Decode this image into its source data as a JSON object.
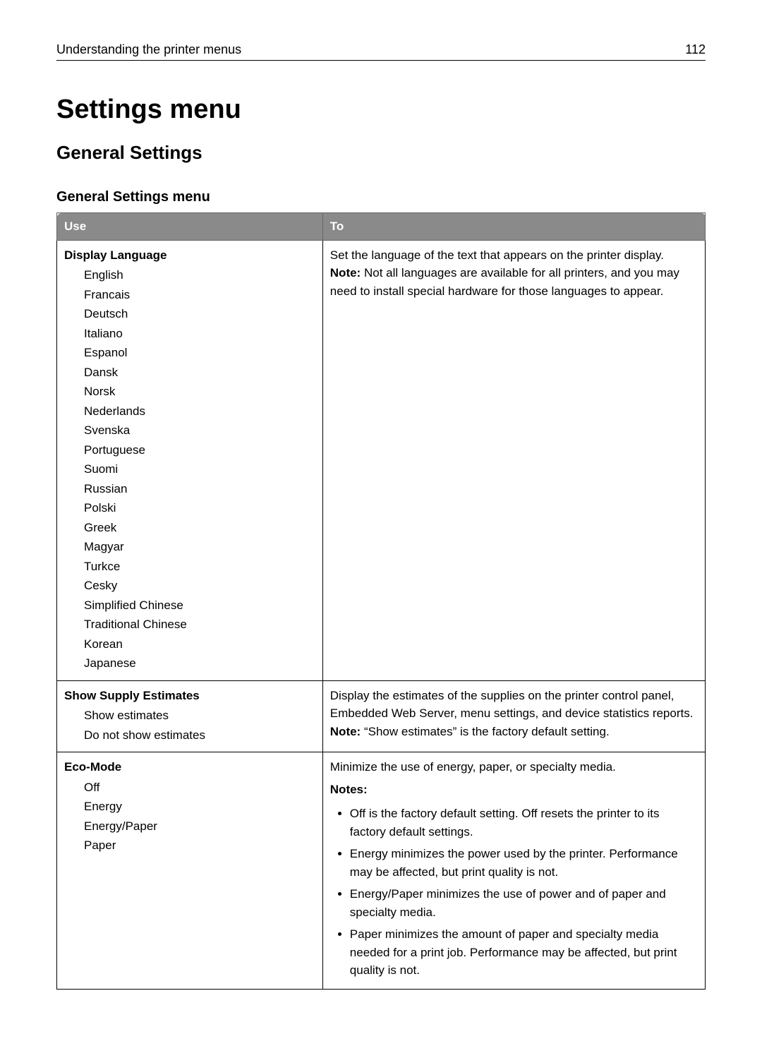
{
  "header": {
    "section": "Understanding the printer menus",
    "page_number": "112"
  },
  "h1": "Settings menu",
  "h2": "General Settings",
  "h3": "General Settings menu",
  "table": {
    "head_use": "Use",
    "head_to": "To",
    "rows": [
      {
        "use_label": "Display Language",
        "options": [
          "English",
          "Francais",
          "Deutsch",
          "Italiano",
          "Espanol",
          "Dansk",
          "Norsk",
          "Nederlands",
          "Svenska",
          "Portuguese",
          "Suomi",
          "Russian",
          "Polski",
          "Greek",
          "Magyar",
          "Turkce",
          "Cesky",
          "Simplified Chinese",
          "Traditional Chinese",
          "Korean",
          "Japanese"
        ],
        "to_desc": "Set the language of the text that appears on the printer display.",
        "note_lead": "Note:",
        "note_text": " Not all languages are available for all printers, and you may need to install special hardware for those languages to appear."
      },
      {
        "use_label": "Show Supply Estimates",
        "options": [
          "Show estimates",
          "Do not show estimates"
        ],
        "to_desc": "Display the estimates of the supplies on the printer control panel, Embedded Web Server, menu settings, and device statistics reports.",
        "note_lead": "Note:",
        "note_text": " “Show estimates” is the factory default setting."
      },
      {
        "use_label": "Eco-Mode",
        "options": [
          "Off",
          "Energy",
          "Energy/Paper",
          "Paper"
        ],
        "to_desc": "Minimize the use of energy, paper, or specialty media.",
        "notes_label": "Notes:",
        "bullets": [
          "Off is the factory default setting. Off resets the printer to its factory default settings.",
          "Energy minimizes the power used by the printer. Performance may be affected, but print quality is not.",
          "Energy/Paper minimizes the use of power and of paper and specialty media.",
          "Paper minimizes the amount of paper and specialty media needed for a print job. Performance may be affected, but print quality is not."
        ]
      }
    ]
  }
}
